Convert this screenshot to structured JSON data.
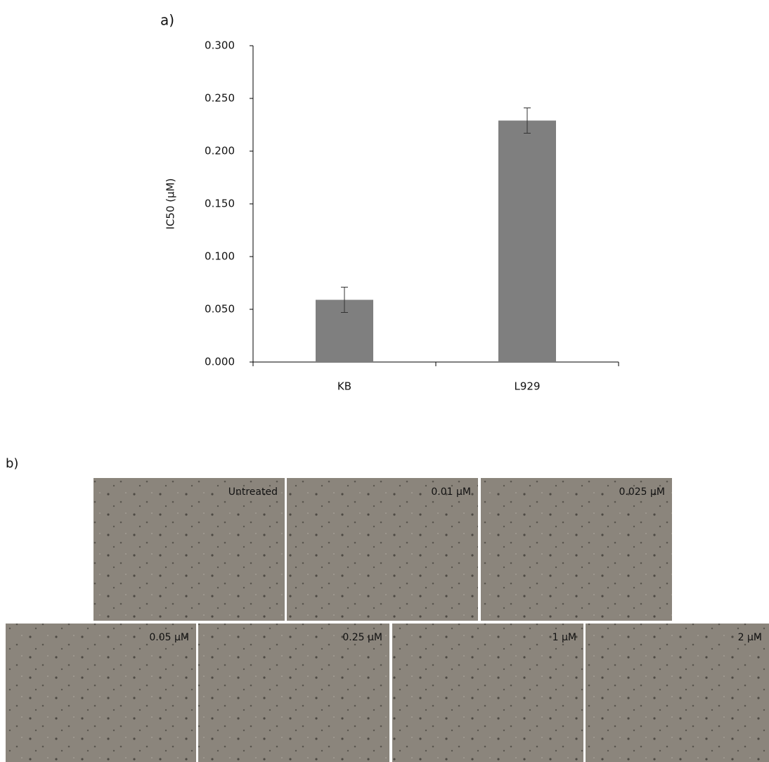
{
  "panel_labels": [
    "a)",
    "b)"
  ],
  "chart_data": {
    "type": "bar",
    "ylabel": "IC50 (µM)",
    "categories": [
      "KB",
      "L929"
    ],
    "values": [
      0.059,
      0.229
    ],
    "errors": [
      0.012,
      0.012
    ],
    "color": "#7f7f7f",
    "ylim": [
      0,
      0.3
    ],
    "yticks": [
      {
        "value": 0,
        "label": "0.000"
      },
      {
        "value": 0.05,
        "label": "0.050"
      },
      {
        "value": 0.1,
        "label": "0.100"
      },
      {
        "value": 0.15,
        "label": "0.150"
      },
      {
        "value": 0.2,
        "label": "0.200"
      },
      {
        "value": 0.25,
        "label": "0.250"
      },
      {
        "value": 0.3,
        "label": "0.300"
      }
    ],
    "grid": false
  },
  "micrographs": {
    "labels": [
      "Untreated",
      "0.01 µM",
      "0.025 µM",
      "0.05 µM",
      "0.25 µM",
      "1 µM",
      "2 µM"
    ]
  }
}
